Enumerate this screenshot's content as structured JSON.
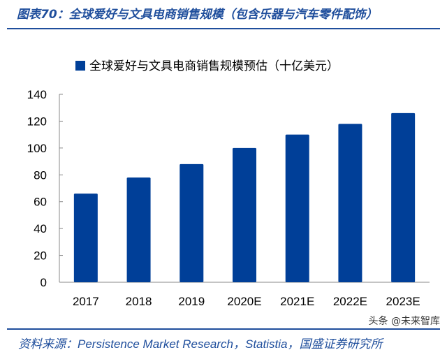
{
  "figure_title": "图表70：全球爱好与文具电商销售规模（包含乐器与汽车零件配饰）",
  "source": "资料来源：Persistence Market Research，Statistia，国盛证券研究所",
  "watermark": "头条 @未来智库",
  "colors": {
    "bar": "#003f98",
    "title": "#1f4e9c"
  },
  "chart_data": {
    "type": "bar",
    "categories": [
      "2017",
      "2018",
      "2019",
      "2020E",
      "2021E",
      "2022E",
      "2023E"
    ],
    "series": [
      {
        "name": "全球爱好与文具电商销售规模预估（十亿美元）",
        "values": [
          66,
          78,
          88,
          100,
          110,
          118,
          126
        ]
      }
    ],
    "ylim": [
      0,
      140
    ],
    "yticks": [
      0,
      20,
      40,
      60,
      80,
      100,
      120,
      140
    ],
    "legend": "top",
    "grid": false
  }
}
